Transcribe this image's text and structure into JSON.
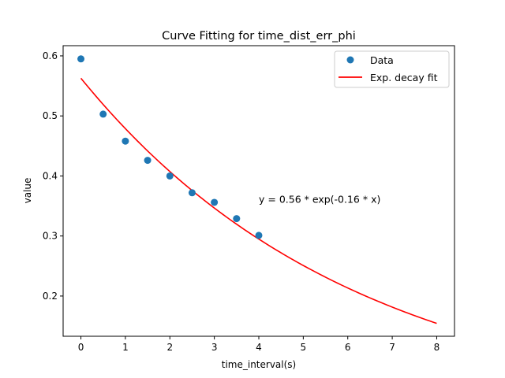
{
  "chart_data": {
    "type": "scatter",
    "title": "Curve Fitting for time_dist_err_phi",
    "xlabel": "time_interval(s)",
    "ylabel": "value",
    "xlim": [
      -0.4,
      8.4
    ],
    "ylim": [
      0.133,
      0.617
    ],
    "xticks": [
      0,
      1,
      2,
      3,
      4,
      5,
      6,
      7,
      8
    ],
    "yticks": [
      0.2,
      0.3,
      0.4,
      0.5,
      0.6
    ],
    "grid": false,
    "legend_position": "top-right",
    "series": [
      {
        "name": "Data",
        "kind": "scatter",
        "color": "#1f77b4",
        "x": [
          0,
          0.5,
          1,
          1.5,
          2,
          2.5,
          3,
          3.5,
          4
        ],
        "y": [
          0.595,
          0.503,
          0.458,
          0.426,
          0.4,
          0.372,
          0.356,
          0.329,
          0.301
        ]
      },
      {
        "name": "Exp. decay fit",
        "kind": "line",
        "color": "#ff0000",
        "a": 0.5628,
        "b": 0.1616,
        "x_range": [
          0,
          8
        ]
      }
    ],
    "annotation": {
      "text": "y = 0.56 * exp(-0.16 * x)",
      "x": 4.0,
      "y": 0.362
    }
  }
}
